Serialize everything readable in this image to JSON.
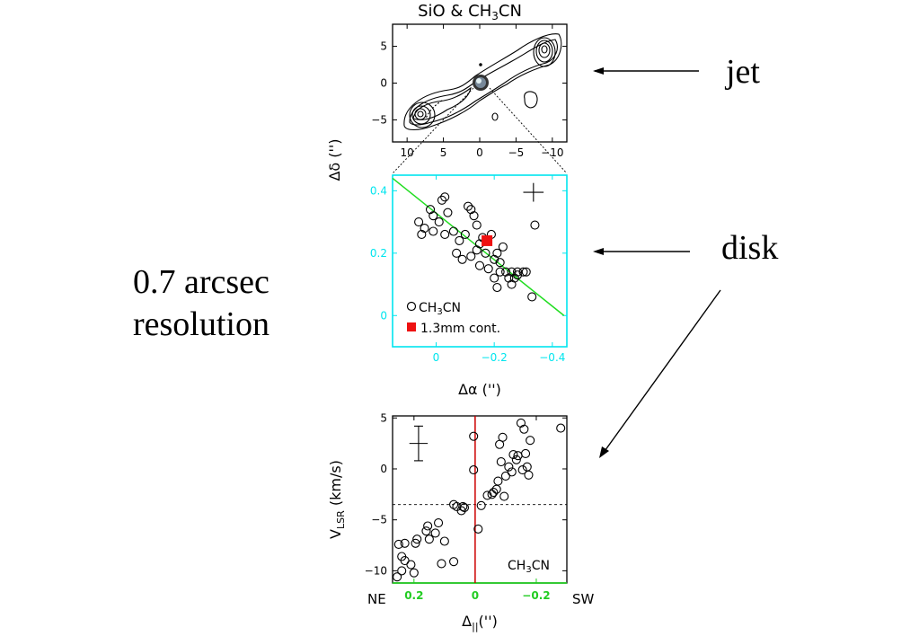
{
  "annotations": {
    "jet": "jet",
    "disk": "disk",
    "resolution_line1": "0.7 arcsec",
    "resolution_line2": "resolution"
  },
  "colors": {
    "fit_line": "#22dd22",
    "middle_axes": "#00e5ee",
    "continuum_marker": "#ee1111",
    "velocity_line": "#cc0000",
    "bottom_axis": "#22cc22"
  },
  "chart_data": [
    {
      "type": "contour",
      "title": "SiO & CH3CN",
      "title_parts": {
        "a": "SiO & CH",
        "sub": "3",
        "b": "CN"
      },
      "ylabel": "Δδ ('')",
      "xlim": [
        12,
        -12
      ],
      "ylim": [
        -8,
        8
      ],
      "xticks": [
        "10",
        "5",
        "0",
        "−5",
        "−10"
      ],
      "xtick_values": [
        10,
        5,
        0,
        -5,
        -10
      ],
      "yticks": [
        "5",
        "0",
        "−5"
      ],
      "ytick_values": [
        5,
        0,
        -5
      ],
      "grid": false
    },
    {
      "type": "scatter",
      "xlabel": "Δα ('')",
      "xlim": [
        0.15,
        -0.45
      ],
      "ylim": [
        -0.1,
        0.45
      ],
      "xticks": [
        "0",
        "−0.2",
        "−0.4"
      ],
      "xtick_values": [
        0,
        -0.2,
        -0.4
      ],
      "yticks": [
        "0.4",
        "0.2",
        "0"
      ],
      "ytick_values": [
        0.4,
        0.2,
        0
      ],
      "legend": [
        "CH3CN",
        "1.3mm cont."
      ],
      "legend_parts": {
        "ch_a": "CH",
        "ch_sub": "3",
        "ch_b": "CN",
        "cont": "1.3mm cont."
      },
      "legend_position": "bottom-left",
      "series": [
        {
          "name": "CH3CN",
          "x": [
            0.06,
            0.05,
            0.04,
            0.02,
            0.01,
            0.01,
            -0.01,
            -0.02,
            -0.03,
            -0.03,
            -0.04,
            -0.06,
            -0.07,
            -0.08,
            -0.09,
            -0.1,
            -0.11,
            -0.12,
            -0.12,
            -0.13,
            -0.14,
            -0.14,
            -0.15,
            -0.15,
            -0.16,
            -0.17,
            -0.18,
            -0.19,
            -0.2,
            -0.2,
            -0.21,
            -0.21,
            -0.22,
            -0.22,
            -0.23,
            -0.24,
            -0.25,
            -0.26,
            -0.26,
            -0.27,
            -0.28,
            -0.28,
            -0.3,
            -0.31,
            -0.33,
            -0.34
          ],
          "y": [
            0.3,
            0.26,
            0.28,
            0.34,
            0.32,
            0.27,
            0.3,
            0.37,
            0.38,
            0.26,
            0.33,
            0.27,
            0.2,
            0.24,
            0.18,
            0.26,
            0.35,
            0.19,
            0.34,
            0.32,
            0.29,
            0.21,
            0.16,
            0.23,
            0.25,
            0.2,
            0.15,
            0.26,
            0.18,
            0.12,
            0.2,
            0.09,
            0.17,
            0.14,
            0.22,
            0.14,
            0.12,
            0.14,
            0.1,
            0.12,
            0.13,
            0.14,
            0.14,
            0.14,
            0.06,
            0.29
          ]
        },
        {
          "name": "1.3mm cont.",
          "x": [
            -0.175
          ],
          "y": [
            0.24
          ]
        }
      ],
      "fit_line": {
        "x": [
          0.15,
          -0.44
        ],
        "y": [
          0.44,
          0.0
        ]
      },
      "error_bar": {
        "x": -0.335,
        "y": 0.395,
        "dx": 0.035,
        "dy": 0.03
      }
    },
    {
      "type": "scatter",
      "xlabel": "Δ||('')",
      "ylabel": "VLSR (km/s)",
      "ylabel_parts": {
        "v": "V",
        "sub": "LSR",
        "rest": " (km/s)"
      },
      "xlabel_parts": {
        "d": "Δ",
        "sub": "||",
        "rest": "('')"
      },
      "xlim": [
        0.27,
        -0.3
      ],
      "ylim": [
        -11.2,
        5.2
      ],
      "xticks": [
        "0.2",
        "0",
        "−0.2"
      ],
      "xtick_values": [
        0.2,
        0,
        -0.2
      ],
      "yticks": [
        "5",
        "0",
        "−5",
        "−10"
      ],
      "ytick_values": [
        5,
        0,
        -5,
        -10
      ],
      "label_left": "NE",
      "label_right": "SW",
      "panel_label_parts": {
        "a": "CH",
        "sub": "3",
        "b": "CN"
      },
      "hline": -3.5,
      "vline": 0,
      "error_bar": {
        "x": 0.185,
        "y": 2.5,
        "dx": 0.03,
        "dy": 1.7
      },
      "series": [
        {
          "name": "CH3CN",
          "x": [
            0.255,
            0.24,
            0.23,
            0.21,
            0.2,
            0.195,
            0.19,
            0.25,
            0.24,
            0.23,
            0.16,
            0.155,
            0.15,
            0.13,
            0.12,
            0.11,
            0.1,
            0.07,
            0.07,
            0.06,
            0.045,
            0.04,
            0.035,
            0.005,
            0.005,
            -0.01,
            -0.02,
            -0.04,
            -0.055,
            -0.06,
            -0.07,
            -0.075,
            -0.08,
            -0.085,
            -0.09,
            -0.095,
            -0.1,
            -0.11,
            -0.12,
            -0.125,
            -0.135,
            -0.14,
            -0.15,
            -0.155,
            -0.16,
            -0.165,
            -0.17,
            -0.175,
            -0.18,
            -0.28
          ],
          "y": [
            -10.6,
            -10.0,
            -9.0,
            -9.4,
            -10.2,
            -7.3,
            -6.9,
            -7.4,
            -8.6,
            -7.3,
            -6.1,
            -5.6,
            -6.9,
            -6.3,
            -5.3,
            -9.3,
            -7.1,
            -9.1,
            -3.5,
            -3.7,
            -4.1,
            -3.7,
            -3.8,
            3.2,
            -0.1,
            -5.9,
            -3.6,
            -2.6,
            -2.5,
            -2.3,
            -2.0,
            -1.2,
            2.4,
            0.7,
            3.1,
            -2.7,
            -0.7,
            0.2,
            -0.3,
            1.4,
            0.9,
            1.3,
            4.5,
            -0.1,
            3.9,
            1.5,
            0.2,
            -0.6,
            2.8,
            4.0
          ]
        }
      ]
    }
  ]
}
